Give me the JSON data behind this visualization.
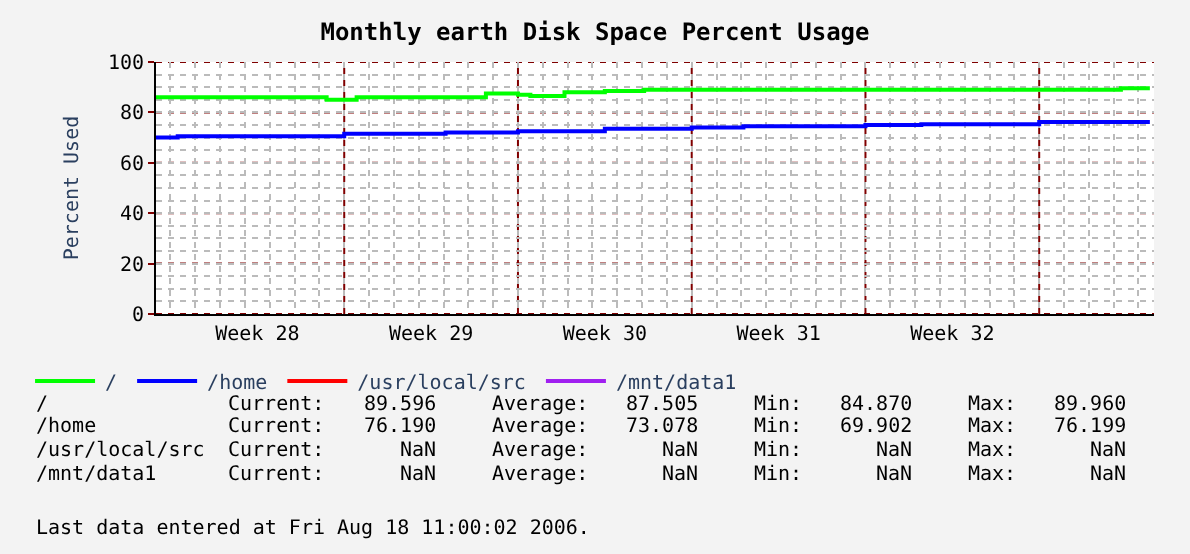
{
  "chart_data": {
    "type": "step",
    "title": "Monthly earth Disk Space Percent Usage",
    "ylabel": "Percent Used",
    "xlim": [
      "2006-07-09T10:00",
      "2006-08-18T15:00"
    ],
    "ylim": [
      0,
      100
    ],
    "yticks": [
      0,
      20,
      40,
      60,
      80,
      100
    ],
    "xticks": [
      {
        "value": "2006-07-13T12:00",
        "label": "Week 28"
      },
      {
        "value": "2006-07-17",
        "label": null
      },
      {
        "value": "2006-07-20T12:00",
        "label": "Week 29"
      },
      {
        "value": "2006-07-24",
        "label": null
      },
      {
        "value": "2006-07-27T12:00",
        "label": "Week 30"
      },
      {
        "value": "2006-07-31",
        "label": null
      },
      {
        "value": "2006-08-03T12:00",
        "label": "Week 31"
      },
      {
        "value": "2006-08-07",
        "label": null
      },
      {
        "value": "2006-08-10T12:00",
        "label": "Week 32"
      },
      {
        "value": "2006-08-14",
        "label": null
      }
    ],
    "x": [
      "2006-07-09T10:00",
      "2006-07-10T07:00",
      "2006-07-13T02:00",
      "2006-07-16T07:00",
      "2006-07-17T00:00",
      "2006-07-17T12:00",
      "2006-07-19T12:00",
      "2006-07-21T02:00",
      "2006-07-22T17:00",
      "2006-07-24T00:00",
      "2006-07-24T12:00",
      "2006-07-25T21:00",
      "2006-07-27T12:00",
      "2006-07-29T02:00",
      "2006-07-31T00:00",
      "2006-08-02T02:00",
      "2006-08-04T12:00",
      "2006-08-07T00:00",
      "2006-08-09T06:00",
      "2006-08-11T18:00",
      "2006-08-14T00:00",
      "2006-08-16T02:00",
      "2006-08-17T07:00",
      "2006-08-18T11:00"
    ],
    "series": [
      {
        "name": "/",
        "color": "#00ff00",
        "values": [
          86,
          86,
          86,
          85,
          85,
          86,
          86,
          86,
          87.5,
          87,
          86.5,
          88,
          88.5,
          89,
          89,
          89,
          89,
          89,
          89,
          89,
          89,
          89,
          89.6,
          89.6
        ]
      },
      {
        "name": "/home",
        "color": "#0000ff",
        "values": [
          70,
          70.5,
          70.5,
          70.5,
          71.5,
          71.5,
          71.5,
          72,
          72,
          72.5,
          72.5,
          72.5,
          73.5,
          73.5,
          74,
          74.5,
          74.5,
          75,
          75.3,
          75.3,
          76.2,
          76.2,
          76.2,
          76.2
        ]
      },
      {
        "name": "/usr/local/src",
        "color": "#ff0000",
        "values": [
          null,
          null,
          null,
          null,
          null,
          null,
          null,
          null,
          null,
          null,
          null,
          null,
          null,
          null,
          null,
          null,
          null,
          null,
          null,
          null,
          null,
          null,
          null,
          null
        ]
      },
      {
        "name": "/mnt/data1",
        "color": "#a020f0",
        "values": [
          null,
          null,
          null,
          null,
          null,
          null,
          null,
          null,
          null,
          null,
          null,
          null,
          null,
          null,
          null,
          null,
          null,
          null,
          null,
          null,
          null,
          null,
          null,
          null
        ]
      }
    ],
    "grid": true,
    "legend": "bottom left",
    "annotations": [
      "/",
      "Current:",
      "89.596",
      "Average:",
      "87.505",
      "Min:",
      "84.870",
      "Max:",
      "89.960",
      "/home",
      "Current:",
      "76.190",
      "Average:",
      "73.078",
      "Min:",
      "69.902",
      "Max:",
      "76.199",
      "/usr/local/src",
      "Current:",
      "NaN",
      "Average:",
      "NaN",
      "Min:",
      "NaN",
      "Max:",
      "NaN",
      "/mnt/data1",
      "Current:",
      "NaN",
      "Average:",
      "NaN",
      "Min:",
      "NaN",
      "Max:",
      "NaN",
      "Last data entered at Fri Aug 18 11:00:02 2006."
    ]
  }
}
